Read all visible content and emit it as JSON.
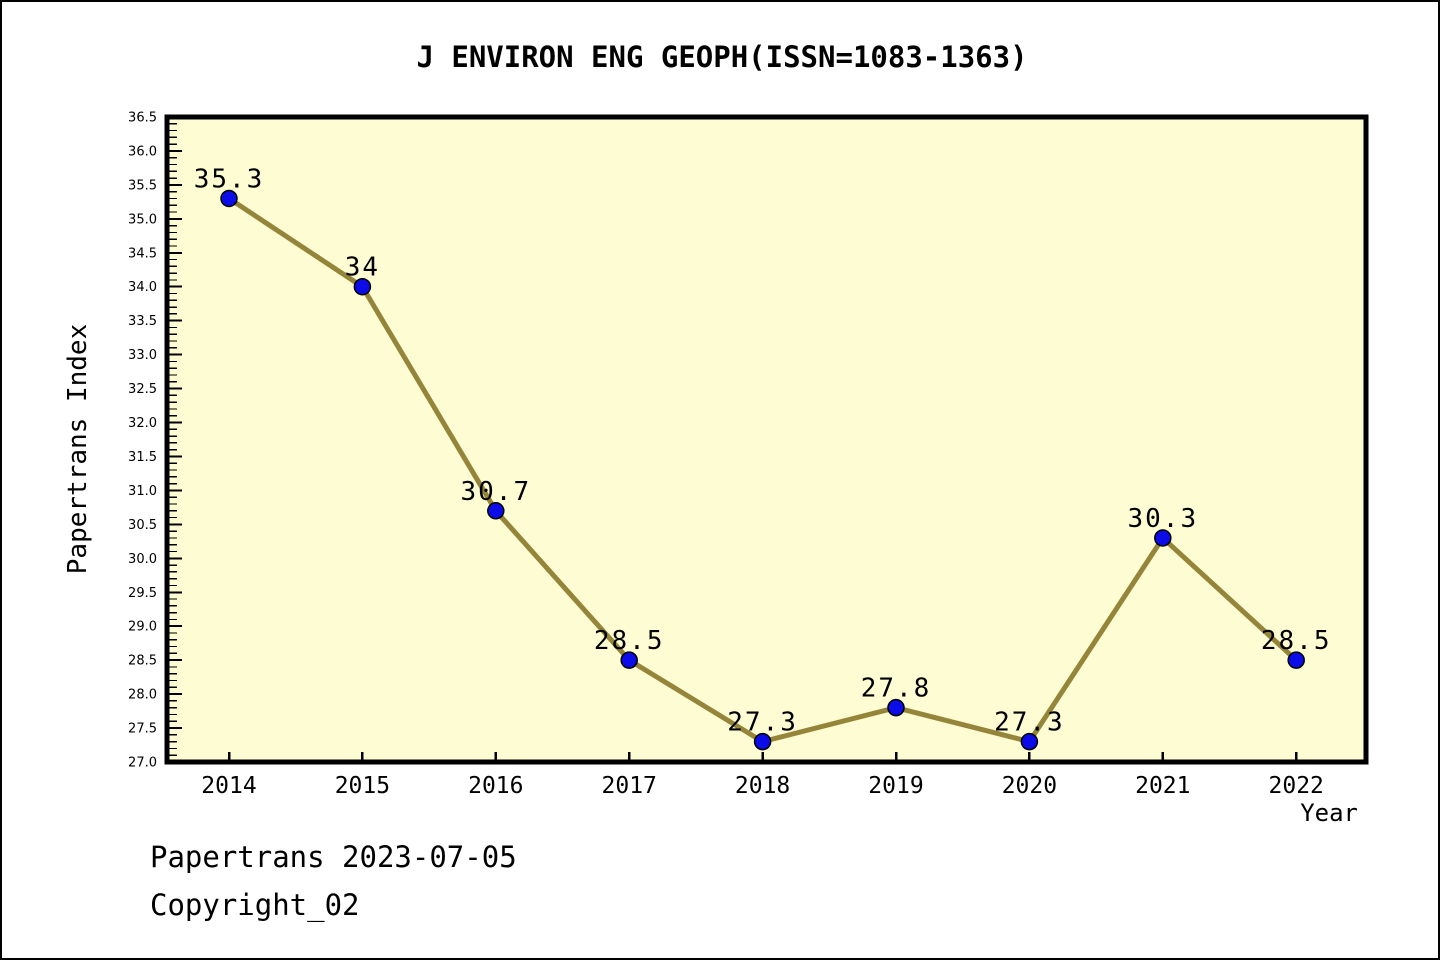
{
  "page": {
    "title": "J ENVIRON ENG GEOPH(ISSN=1083-1363)"
  },
  "footer": {
    "line1": "Papertrans 2023-07-05",
    "line2": "Copyright_02"
  },
  "chart_data": {
    "type": "line",
    "title": "J ENVIRON ENG GEOPH(ISSN=1083-1363)",
    "xlabel": "Year",
    "ylabel": "Papertrans Index",
    "x": [
      2014,
      2015,
      2016,
      2017,
      2018,
      2019,
      2020,
      2021,
      2022
    ],
    "values": [
      35.3,
      34,
      30.7,
      28.5,
      27.3,
      27.8,
      27.3,
      30.3,
      28.5
    ],
    "point_labels": [
      "35.3",
      "34",
      "30.7",
      "28.5",
      "27.3",
      "27.8",
      "27.3",
      "30.3",
      "28.5"
    ],
    "ylim": [
      27.0,
      36.5
    ],
    "y_major_step": 0.5,
    "y_minor_step": 0.1,
    "grid": false,
    "legend": null,
    "colors": {
      "plot_bg": "#fdfcd2",
      "page_bg": "#ffffff",
      "line": "#95853a",
      "marker": "#0b0ce8",
      "marker_edge": "#000000",
      "axis": "#000000",
      "text": "#000000"
    }
  }
}
